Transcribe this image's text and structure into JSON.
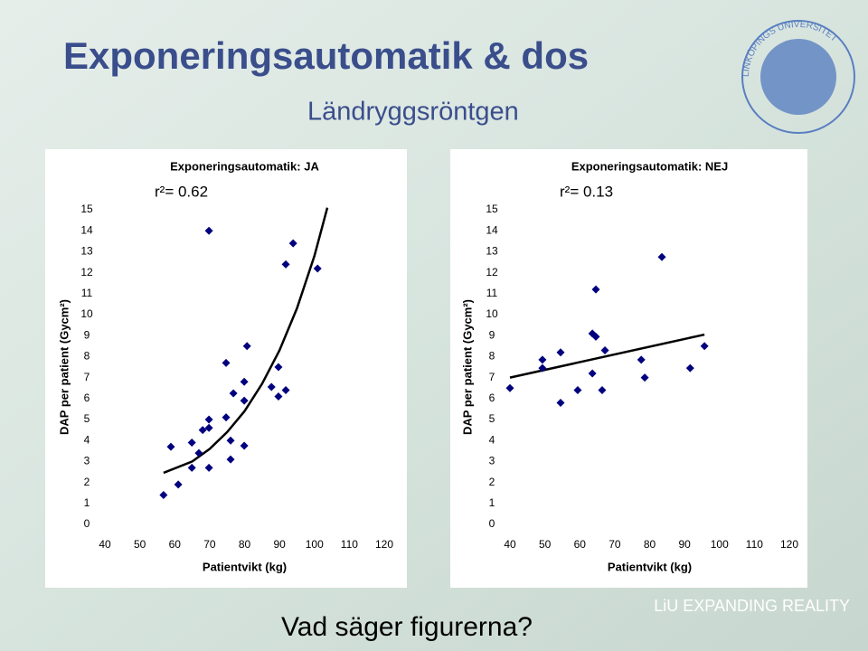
{
  "slide": {
    "title": "Exponeringsautomatik & dos",
    "subtitle": "Ländryggsröntgen",
    "question": "Vad säger figurerna?",
    "brand": "LiU EXPANDING REALITY",
    "logo_text": "LINKÖPINGS UNIVERSITET"
  },
  "chart_data": [
    {
      "type": "scatter",
      "title": "Exponeringsautomatik: JA",
      "annotation": "r²= 0.62",
      "x_label": "Patientvikt (kg)",
      "y_label": "DAP per patient (Gycm²)",
      "x": [
        56.8,
        58.9,
        61,
        64.9,
        64.9,
        66.9,
        68,
        69.8,
        69.8,
        69.8,
        69.8,
        74.7,
        74.7,
        76,
        76,
        76.8,
        79.9,
        79.9,
        79.9,
        80.7,
        87.7,
        89.7,
        89.7,
        91.8,
        91.8,
        93.9,
        100.9
      ],
      "y": [
        1.4,
        3.7,
        1.9,
        3.9,
        2.7,
        3.4,
        4.5,
        14.0,
        4.6,
        5.0,
        2.7,
        7.7,
        5.1,
        4.0,
        3.1,
        6.25,
        3.75,
        6.8,
        5.9,
        8.5,
        6.55,
        6.1,
        7.5,
        12.4,
        6.4,
        13.4,
        12.2
      ],
      "color": "#00007f",
      "trendline": {
        "x": [
          56.8,
          65,
          70,
          75,
          80,
          85,
          90,
          95,
          100,
          103.7
        ],
        "y": [
          2.46,
          3.0,
          3.6,
          4.4,
          5.4,
          6.7,
          8.3,
          10.3,
          12.8,
          15.1
        ],
        "color": "#000000"
      },
      "xlim": [
        40,
        120
      ],
      "ylim": [
        0,
        15
      ],
      "xticks": [
        40,
        50,
        60,
        70,
        80,
        90,
        100,
        110,
        120
      ],
      "yticks": [
        0,
        1,
        2,
        3,
        4,
        5,
        6,
        7,
        8,
        9,
        10,
        11,
        12,
        13,
        14,
        15
      ],
      "grid": false
    },
    {
      "type": "scatter",
      "title": "Exponeringsautomatik: NEJ",
      "annotation": "r²= 0.13",
      "x_label": "Patientvikt (kg)",
      "y_label": "DAP per patient (Gycm²)",
      "x": [
        40,
        49.3,
        49.3,
        54.5,
        54.5,
        59.4,
        63.6,
        64.6,
        64.6,
        63.6,
        66.4,
        67.2,
        77.6,
        78.6,
        83.5,
        91.6,
        95.7
      ],
      "y": [
        6.5,
        7.85,
        7.45,
        8.2,
        5.8,
        6.4,
        9.1,
        8.95,
        11.2,
        7.2,
        6.4,
        8.3,
        7.85,
        7.0,
        12.75,
        7.45,
        8.5
      ],
      "color": "#00007f",
      "trendline": {
        "x": [
          40,
          95.7
        ],
        "y": [
          7.0,
          9.05
        ],
        "color": "#000000"
      },
      "xlim": [
        40,
        120
      ],
      "ylim": [
        0,
        15
      ],
      "xticks": [
        40,
        50,
        60,
        70,
        80,
        90,
        100,
        110,
        120
      ],
      "yticks": [
        0,
        1,
        2,
        3,
        4,
        5,
        6,
        7,
        8,
        9,
        10,
        11,
        12,
        13,
        14,
        15
      ],
      "grid": false
    }
  ]
}
